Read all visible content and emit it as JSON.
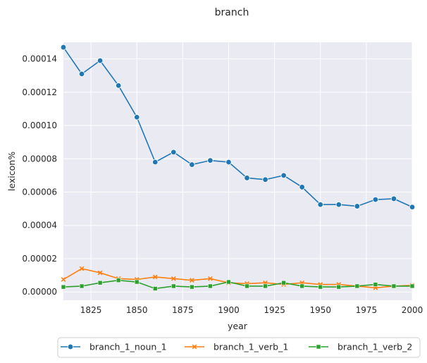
{
  "chart_data": {
    "type": "line",
    "title": "branch",
    "xlabel": "year",
    "ylabel": "lexicon%",
    "xlim": [
      1810,
      2000
    ],
    "ylim": [
      -5e-06,
      0.00015
    ],
    "xticks": [
      1825,
      1850,
      1875,
      1900,
      1925,
      1950,
      1975,
      2000
    ],
    "xtick_labels": [
      "1825",
      "1850",
      "1875",
      "1900",
      "1925",
      "1950",
      "1975",
      "2000"
    ],
    "yticks": [
      0,
      2e-05,
      4e-05,
      6e-05,
      8e-05,
      0.0001,
      0.00012,
      0.00014
    ],
    "ytick_labels": [
      "0.00000",
      "0.00002",
      "0.00004",
      "0.00006",
      "0.00008",
      "0.00010",
      "0.00012",
      "0.00014"
    ],
    "grid": true,
    "background": "#eaeaf2",
    "legend_position": "bottom-center",
    "x": [
      1810,
      1820,
      1830,
      1840,
      1850,
      1860,
      1870,
      1880,
      1890,
      1900,
      1910,
      1920,
      1930,
      1940,
      1950,
      1960,
      1970,
      1980,
      1990,
      2000
    ],
    "series": [
      {
        "name": "branch_1_noun_1",
        "color": "#1f77b4",
        "marker": "circle",
        "values": [
          0.000147,
          0.000131,
          0.000139,
          0.000124,
          0.000105,
          7.8e-05,
          8.4e-05,
          7.65e-05,
          7.9e-05,
          7.8e-05,
          6.85e-05,
          6.75e-05,
          7e-05,
          6.3e-05,
          5.25e-05,
          5.25e-05,
          5.15e-05,
          5.55e-05,
          5.6e-05,
          5.1e-05
        ]
      },
      {
        "name": "branch_1_verb_1",
        "color": "#ff7f0e",
        "marker": "x",
        "values": [
          7.5e-06,
          1.4e-05,
          1.15e-05,
          8e-06,
          7.5e-06,
          9e-06,
          8e-06,
          7e-06,
          8e-06,
          5.5e-06,
          5e-06,
          5.5e-06,
          4.5e-06,
          5.5e-06,
          4.5e-06,
          4.5e-06,
          3.5e-06,
          2.5e-06,
          3.5e-06,
          4e-06
        ]
      },
      {
        "name": "branch_1_verb_2",
        "color": "#2ca02c",
        "marker": "square",
        "values": [
          3e-06,
          3.5e-06,
          5.5e-06,
          7e-06,
          6e-06,
          2e-06,
          3.5e-06,
          3e-06,
          3.5e-06,
          6e-06,
          3.5e-06,
          3.5e-06,
          5.5e-06,
          3.5e-06,
          3e-06,
          3e-06,
          3.5e-06,
          4.5e-06,
          3.5e-06,
          3.5e-06
        ]
      }
    ]
  }
}
